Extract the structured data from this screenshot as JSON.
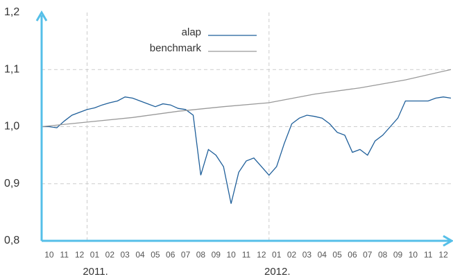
{
  "chart_data": {
    "type": "line",
    "xlim": [
      0,
      27
    ],
    "ylim": [
      0.8,
      1.2
    ],
    "yticks": [
      {
        "value": 0.8,
        "label": "0,8"
      },
      {
        "value": 0.9,
        "label": "0,9"
      },
      {
        "value": 1.0,
        "label": "1,0"
      },
      {
        "value": 1.1,
        "label": "1,1"
      },
      {
        "value": 1.2,
        "label": "1,2"
      }
    ],
    "xticks": [
      {
        "value": 0.5,
        "label": "10"
      },
      {
        "value": 1.5,
        "label": "11"
      },
      {
        "value": 2.5,
        "label": "12"
      },
      {
        "value": 3.5,
        "label": "01"
      },
      {
        "value": 4.5,
        "label": "02"
      },
      {
        "value": 5.5,
        "label": "03"
      },
      {
        "value": 6.5,
        "label": "04"
      },
      {
        "value": 7.5,
        "label": "05"
      },
      {
        "value": 8.5,
        "label": "06"
      },
      {
        "value": 9.5,
        "label": "07"
      },
      {
        "value": 10.5,
        "label": "08"
      },
      {
        "value": 11.5,
        "label": "09"
      },
      {
        "value": 12.5,
        "label": "10"
      },
      {
        "value": 13.5,
        "label": "11"
      },
      {
        "value": 14.5,
        "label": "12"
      },
      {
        "value": 15.5,
        "label": "01"
      },
      {
        "value": 16.5,
        "label": "02"
      },
      {
        "value": 17.5,
        "label": "03"
      },
      {
        "value": 18.5,
        "label": "04"
      },
      {
        "value": 19.5,
        "label": "05"
      },
      {
        "value": 20.5,
        "label": "06"
      },
      {
        "value": 21.5,
        "label": "07"
      },
      {
        "value": 22.5,
        "label": "08"
      },
      {
        "value": 23.5,
        "label": "09"
      },
      {
        "value": 24.5,
        "label": "10"
      },
      {
        "value": 25.5,
        "label": "11"
      },
      {
        "value": 26.5,
        "label": "12"
      }
    ],
    "year_labels": [
      {
        "value": 3,
        "label": "2011."
      },
      {
        "value": 15,
        "label": "2012."
      }
    ],
    "grid": true,
    "legend": "top",
    "series": [
      {
        "name": "alap",
        "color": "#1f5f9a",
        "x": [
          0,
          0.5,
          1,
          1.5,
          2,
          2.5,
          3,
          3.5,
          4,
          4.5,
          5,
          5.5,
          6,
          6.5,
          7,
          7.5,
          8,
          8.5,
          9,
          9.5,
          10,
          10.5,
          11,
          11.5,
          12,
          12.5,
          13,
          13.5,
          14,
          14.5,
          15,
          15.5,
          16,
          16.5,
          17,
          17.5,
          18,
          18.5,
          19,
          19.5,
          20,
          20.5,
          21,
          21.5,
          22,
          22.5,
          23,
          23.5,
          24,
          24.5,
          25,
          25.5,
          26,
          26.5,
          27
        ],
        "values": [
          1.0,
          1.0,
          0.998,
          1.01,
          1.02,
          1.025,
          1.03,
          1.033,
          1.038,
          1.042,
          1.045,
          1.052,
          1.05,
          1.045,
          1.04,
          1.035,
          1.04,
          1.038,
          1.032,
          1.03,
          1.02,
          0.915,
          0.96,
          0.95,
          0.93,
          0.865,
          0.92,
          0.94,
          0.945,
          0.93,
          0.915,
          0.93,
          0.97,
          1.005,
          1.015,
          1.02,
          1.018,
          1.015,
          1.005,
          0.99,
          0.985,
          0.955,
          0.96,
          0.95,
          0.975,
          0.985,
          1.0,
          1.015,
          1.045,
          1.045,
          1.045,
          1.045,
          1.05,
          1.052,
          1.05
        ]
      },
      {
        "name": "benchmark",
        "color": "#999999",
        "x": [
          0,
          3,
          6,
          9,
          12,
          15,
          18,
          21,
          24,
          27
        ],
        "values": [
          1.0,
          1.008,
          1.016,
          1.027,
          1.035,
          1.042,
          1.057,
          1.068,
          1.082,
          1.1
        ]
      }
    ]
  }
}
